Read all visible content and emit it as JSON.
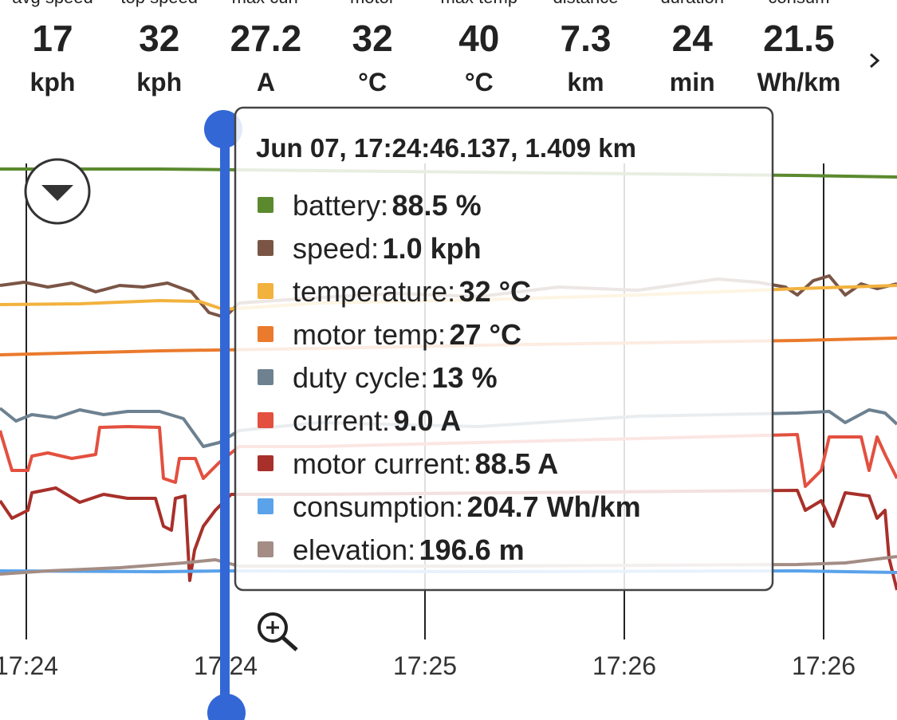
{
  "stats": [
    {
      "label": "avg speed",
      "value": "17",
      "unit": "kph"
    },
    {
      "label": "top speed",
      "value": "32",
      "unit": "kph"
    },
    {
      "label": "max curr",
      "value": "27.2",
      "unit": "A"
    },
    {
      "label": "motor",
      "value": "32",
      "unit": "°C"
    },
    {
      "label": "max temp",
      "value": "40",
      "unit": "°C"
    },
    {
      "label": "distance",
      "value": "7.3",
      "unit": "km"
    },
    {
      "label": "duration",
      "value": "24",
      "unit": "min"
    },
    {
      "label": "consum",
      "value": "21.5",
      "unit": "Wh/km"
    }
  ],
  "x_ticks": [
    "17:24",
    "17:24",
    "17:25",
    "17:26",
    "17:26"
  ],
  "tooltip": {
    "title": "Jun 07, 17:24:46.137, 1.409 km",
    "rows": [
      {
        "name": "battery:",
        "value": "88.5 %",
        "color": "#5b8a2e"
      },
      {
        "name": "speed:",
        "value": "1.0 kph",
        "color": "#7a5546"
      },
      {
        "name": "temperature:",
        "value": "32 °C",
        "color": "#f2b23e"
      },
      {
        "name": "motor temp:",
        "value": "27 °C",
        "color": "#ea7a2c"
      },
      {
        "name": "duty cycle:",
        "value": "13 %",
        "color": "#6d8190"
      },
      {
        "name": "current:",
        "value": "9.0 A",
        "color": "#e3503f"
      },
      {
        "name": "motor current:",
        "value": "88.5 A",
        "color": "#a8302a"
      },
      {
        "name": "consumption:",
        "value": "204.7 Wh/km",
        "color": "#5aa2ea"
      },
      {
        "name": "elevation:",
        "value": "196.6 m",
        "color": "#a38d85"
      }
    ]
  }
}
